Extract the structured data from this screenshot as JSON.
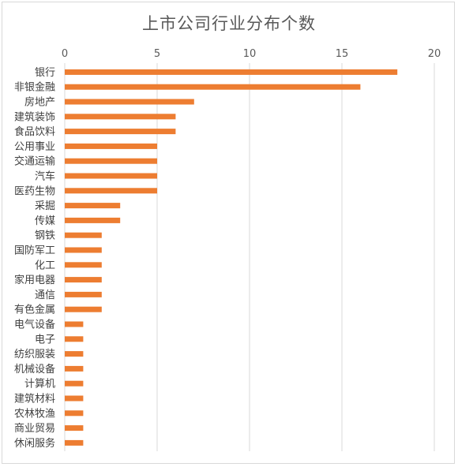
{
  "chart_data": {
    "type": "bar",
    "orientation": "horizontal",
    "title": "上市公司行业分布个数",
    "xlabel": "",
    "ylabel": "",
    "xlim": [
      0,
      20
    ],
    "ticks": [
      0,
      5,
      10,
      15,
      20
    ],
    "axis_position": "top",
    "grid": true,
    "bar_color": "#ed7d31",
    "gridline_color": "#d9d9d9",
    "categories": [
      "银行",
      "非银金融",
      "房地产",
      "建筑装饰",
      "食品饮料",
      "公用事业",
      "交通运输",
      "汽车",
      "医药生物",
      "采掘",
      "传媒",
      "钢铁",
      "国防军工",
      "化工",
      "家用电器",
      "通信",
      "有色金属",
      "电气设备",
      "电子",
      "纺织服装",
      "机械设备",
      "计算机",
      "建筑材料",
      "农林牧渔",
      "商业贸易",
      "休闲服务"
    ],
    "values": [
      18,
      16,
      7,
      6,
      6,
      5,
      5,
      5,
      5,
      3,
      3,
      2,
      2,
      2,
      2,
      2,
      2,
      1,
      1,
      1,
      1,
      1,
      1,
      1,
      1,
      1
    ]
  }
}
